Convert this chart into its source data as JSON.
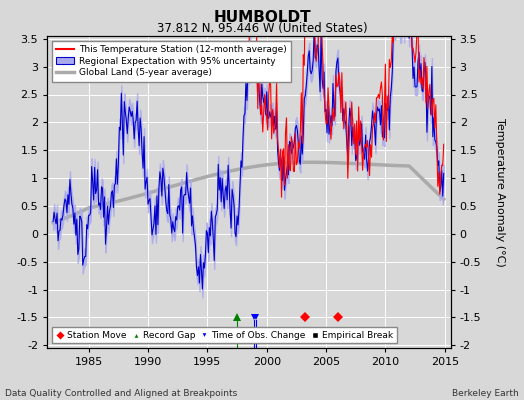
{
  "title": "HUMBOLDT",
  "subtitle": "37.812 N, 95.446 W (United States)",
  "ylabel_right": "Temperature Anomaly (°C)",
  "xlim": [
    1981.5,
    2015.5
  ],
  "ylim": [
    -2.05,
    3.55
  ],
  "yticks": [
    -2,
    -1.5,
    -1,
    -0.5,
    0,
    0.5,
    1,
    1.5,
    2,
    2.5,
    3,
    3.5
  ],
  "xticks": [
    1985,
    1990,
    1995,
    2000,
    2005,
    2010,
    2015
  ],
  "bg_color": "#d8d8d8",
  "plot_bg": "#d8d8d8",
  "grid_color": "#ffffff",
  "station_color": "#ff0000",
  "regional_color": "#0000cc",
  "regional_fill": "#aaaaee",
  "global_color": "#aaaaaa",
  "footer_left": "Data Quality Controlled and Aligned at Breakpoints",
  "footer_right": "Berkeley Earth",
  "legend_labels": [
    "This Temperature Station (12-month average)",
    "Regional Expectation with 95% uncertainty",
    "Global Land (5-year average)"
  ],
  "marker_events": {
    "station_move": [
      2003.25,
      2006.0
    ],
    "record_gap": [
      1997.5
    ],
    "time_obs_change": [
      1998.9,
      1999.1
    ],
    "empirical_break": []
  }
}
